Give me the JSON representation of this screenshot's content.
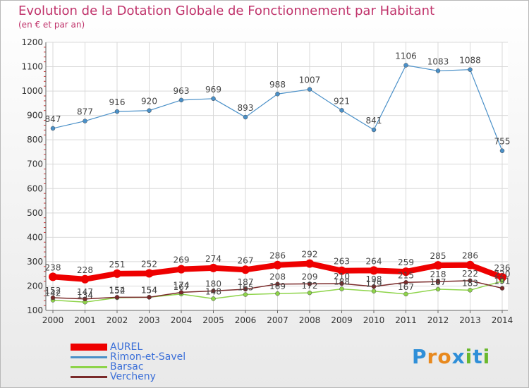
{
  "header": {
    "title": "Evolution de la Dotation Globale de Fonctionnement par Habitant",
    "subtitle": "(en € et par an)"
  },
  "logo": {
    "text": "Proxiti",
    "letters": [
      "P",
      "r",
      "o",
      "x",
      "i",
      "t",
      "i"
    ],
    "colors": [
      "#2f8fd8",
      "#e8891e",
      "#e8891e",
      "#2f8fd8",
      "#6ab82d",
      "#2f8fd8",
      "#6ab82d"
    ]
  },
  "chart_data": {
    "type": "line",
    "title": "Evolution de la Dotation Globale de Fonctionnement par Habitant",
    "subtitle": "(en € et par an)",
    "x": [
      "2000",
      "2001",
      "2002",
      "2003",
      "2004",
      "2005",
      "2006",
      "2007",
      "2008",
      "2009",
      "2010",
      "2011",
      "2012",
      "2013",
      "2014"
    ],
    "ylim": [
      100,
      1200
    ],
    "yticks": [
      100,
      200,
      300,
      400,
      500,
      600,
      700,
      800,
      900,
      1000,
      1100,
      1200
    ],
    "grid": true,
    "legend_position": "bottom-left",
    "series": [
      {
        "name": "AUREL",
        "color": "#ee0000",
        "values": [
          238,
          228,
          251,
          252,
          269,
          274,
          267,
          286,
          292,
          263,
          264,
          259,
          285,
          286,
          236
        ],
        "labels": [
          "238",
          "228",
          "251",
          "252",
          "269",
          "274",
          "267",
          "286",
          "292",
          "263",
          "264",
          "259",
          "285",
          "286",
          "236"
        ]
      },
      {
        "name": "Rimon-et-Savel",
        "color": "#4a90c8",
        "values": [
          847,
          877,
          916,
          920,
          963,
          969,
          893,
          988,
          1007,
          921,
          841,
          1106,
          1083,
          1088,
          755
        ],
        "labels": [
          "847",
          "877",
          "916",
          "920",
          "963",
          "969",
          "893",
          "988",
          "1007",
          "921",
          "841",
          "1106",
          "1083",
          "1088",
          "755"
        ]
      },
      {
        "name": "Barsac",
        "color": "#8ed44a",
        "values": [
          142,
          134,
          152,
          154,
          167,
          148,
          165,
          169,
          172,
          188,
          179,
          167,
          187,
          183,
          220
        ],
        "labels": [
          "142",
          "134",
          "152",
          "154",
          "167",
          "148",
          "165",
          "169",
          "172",
          "188",
          "179",
          "167",
          "187",
          "183",
          "220"
        ]
      },
      {
        "name": "Vercheny",
        "color": "#7a2a2a",
        "values": [
          152,
          147,
          154,
          154,
          174,
          180,
          187,
          208,
          209,
          210,
          198,
          215,
          218,
          222,
          191
        ],
        "labels": [
          "152",
          "147",
          "154",
          "154",
          "174",
          "180",
          "187",
          "208",
          "209",
          "210",
          "198",
          "215",
          "218",
          "222",
          "191"
        ]
      }
    ]
  }
}
